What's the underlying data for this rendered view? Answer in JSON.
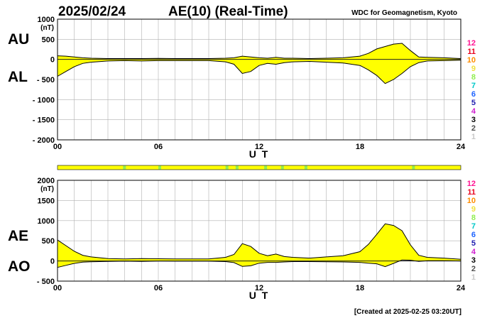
{
  "header": {
    "date": "2025/02/24",
    "title": "AE(10) (Real-Time)",
    "source": "WDC for Geomagnetism, Kyoto"
  },
  "footer": {
    "created": "[Created at 2025-02-25 03:20UT]"
  },
  "station_count_scale": {
    "labels": [
      "12",
      "11",
      "10",
      "9",
      "8",
      "7",
      "6",
      "5",
      "4",
      "3",
      "2",
      "1"
    ],
    "colors": [
      "#ff1493",
      "#e8001c",
      "#ff8c00",
      "#f0e040",
      "#90ee50",
      "#00c8c8",
      "#1e64ff",
      "#2020b0",
      "#d020d0",
      "#000000",
      "#505050",
      "#c8c8c8"
    ]
  },
  "chart_data": [
    {
      "type": "area",
      "name": "AU/AL panel",
      "unit": "(nT)",
      "xlabel": "U T",
      "xlim": [
        0,
        24
      ],
      "ylim": [
        -2000,
        1000
      ],
      "yticks": [
        1000,
        500,
        0,
        -500,
        -1000,
        -1500,
        -2000
      ],
      "ytick_labels": [
        "1000",
        "500",
        "0",
        "- 500",
        "- 1000",
        "- 1500",
        "- 2000"
      ],
      "xticks": [
        0,
        6,
        12,
        18,
        24
      ],
      "xtick_labels": [
        "00",
        "06",
        "12",
        "18",
        "24"
      ],
      "grid": true,
      "fill_color": "#ffff00",
      "upper_label": "AU",
      "lower_label": "AL",
      "series": [
        {
          "name": "AU",
          "x": [
            0,
            0.5,
            1,
            1.5,
            2,
            3,
            4,
            5,
            6,
            7,
            8,
            9,
            10,
            10.5,
            11,
            11.5,
            12,
            12.5,
            13,
            13.5,
            14,
            15,
            16,
            17,
            18,
            18.5,
            19,
            19.5,
            20,
            20.5,
            21,
            21.5,
            22,
            23,
            24
          ],
          "values": [
            90,
            80,
            60,
            40,
            30,
            20,
            20,
            20,
            25,
            20,
            20,
            20,
            30,
            40,
            80,
            60,
            40,
            30,
            50,
            30,
            30,
            20,
            30,
            40,
            80,
            150,
            260,
            320,
            380,
            400,
            220,
            60,
            50,
            40,
            20
          ]
        },
        {
          "name": "AL",
          "x": [
            0,
            0.5,
            1,
            1.5,
            2,
            3,
            4,
            5,
            6,
            7,
            8,
            9,
            10,
            10.5,
            11,
            11.5,
            12,
            12.5,
            13,
            13.5,
            14,
            15,
            16,
            17,
            18,
            18.5,
            19,
            19.5,
            20,
            20.5,
            21,
            21.5,
            22,
            23,
            24
          ],
          "values": [
            -420,
            -300,
            -180,
            -100,
            -70,
            -40,
            -30,
            -40,
            -30,
            -30,
            -30,
            -30,
            -60,
            -120,
            -350,
            -300,
            -150,
            -100,
            -120,
            -80,
            -60,
            -50,
            -70,
            -90,
            -150,
            -260,
            -400,
            -600,
            -500,
            -350,
            -180,
            -80,
            -40,
            -30,
            -20
          ]
        }
      ]
    },
    {
      "type": "area",
      "name": "AE/AO panel",
      "unit": "(nT)",
      "xlabel": "U T",
      "xlim": [
        0,
        24
      ],
      "ylim": [
        -500,
        2000
      ],
      "yticks": [
        2000,
        1500,
        1000,
        500,
        0,
        -500
      ],
      "ytick_labels": [
        "2000",
        "1500",
        "1000",
        "500",
        "0",
        "- 500"
      ],
      "xticks": [
        0,
        6,
        12,
        18,
        24
      ],
      "xtick_labels": [
        "00",
        "06",
        "12",
        "18",
        "24"
      ],
      "grid": true,
      "fill_color": "#ffff00",
      "upper_label": "AE",
      "lower_label": "AO",
      "series": [
        {
          "name": "AE",
          "x": [
            0,
            0.5,
            1,
            1.5,
            2,
            3,
            4,
            5,
            6,
            7,
            8,
            9,
            10,
            10.5,
            11,
            11.5,
            12,
            12.5,
            13,
            13.5,
            14,
            15,
            16,
            17,
            18,
            18.5,
            19,
            19.5,
            20,
            20.5,
            21,
            21.5,
            22,
            23,
            24
          ],
          "values": [
            520,
            380,
            240,
            140,
            100,
            60,
            50,
            60,
            55,
            50,
            50,
            50,
            90,
            160,
            430,
            360,
            190,
            130,
            170,
            110,
            90,
            70,
            100,
            130,
            230,
            410,
            660,
            920,
            880,
            750,
            400,
            140,
            90,
            70,
            40
          ]
        },
        {
          "name": "AO",
          "x": [
            0,
            0.5,
            1,
            1.5,
            2,
            3,
            4,
            5,
            6,
            7,
            8,
            9,
            10,
            10.5,
            11,
            11.5,
            12,
            12.5,
            13,
            13.5,
            14,
            15,
            16,
            17,
            18,
            18.5,
            19,
            19.5,
            20,
            20.5,
            21,
            21.5,
            22,
            23,
            24
          ],
          "values": [
            -160,
            -110,
            -60,
            -30,
            -20,
            -10,
            -5,
            -10,
            -3,
            -5,
            -5,
            -5,
            -15,
            -40,
            -135,
            -120,
            -55,
            -35,
            -35,
            -25,
            -15,
            -15,
            -20,
            -25,
            -35,
            -55,
            -70,
            -140,
            -60,
            25,
            20,
            -10,
            5,
            5,
            0
          ]
        }
      ]
    }
  ],
  "station_strip": {
    "base_color": "#ffff00",
    "marks": [
      {
        "hour": 3.9,
        "color": "#90ee50"
      },
      {
        "hour": 6.0,
        "color": "#90ee50"
      },
      {
        "hour": 10.0,
        "color": "#90ee50"
      },
      {
        "hour": 10.6,
        "color": "#90ee50"
      },
      {
        "hour": 12.3,
        "color": "#90ee50"
      },
      {
        "hour": 13.3,
        "color": "#90ee50"
      },
      {
        "hour": 14.7,
        "color": "#90ee50"
      },
      {
        "hour": 21.1,
        "color": "#90ee50"
      }
    ]
  }
}
